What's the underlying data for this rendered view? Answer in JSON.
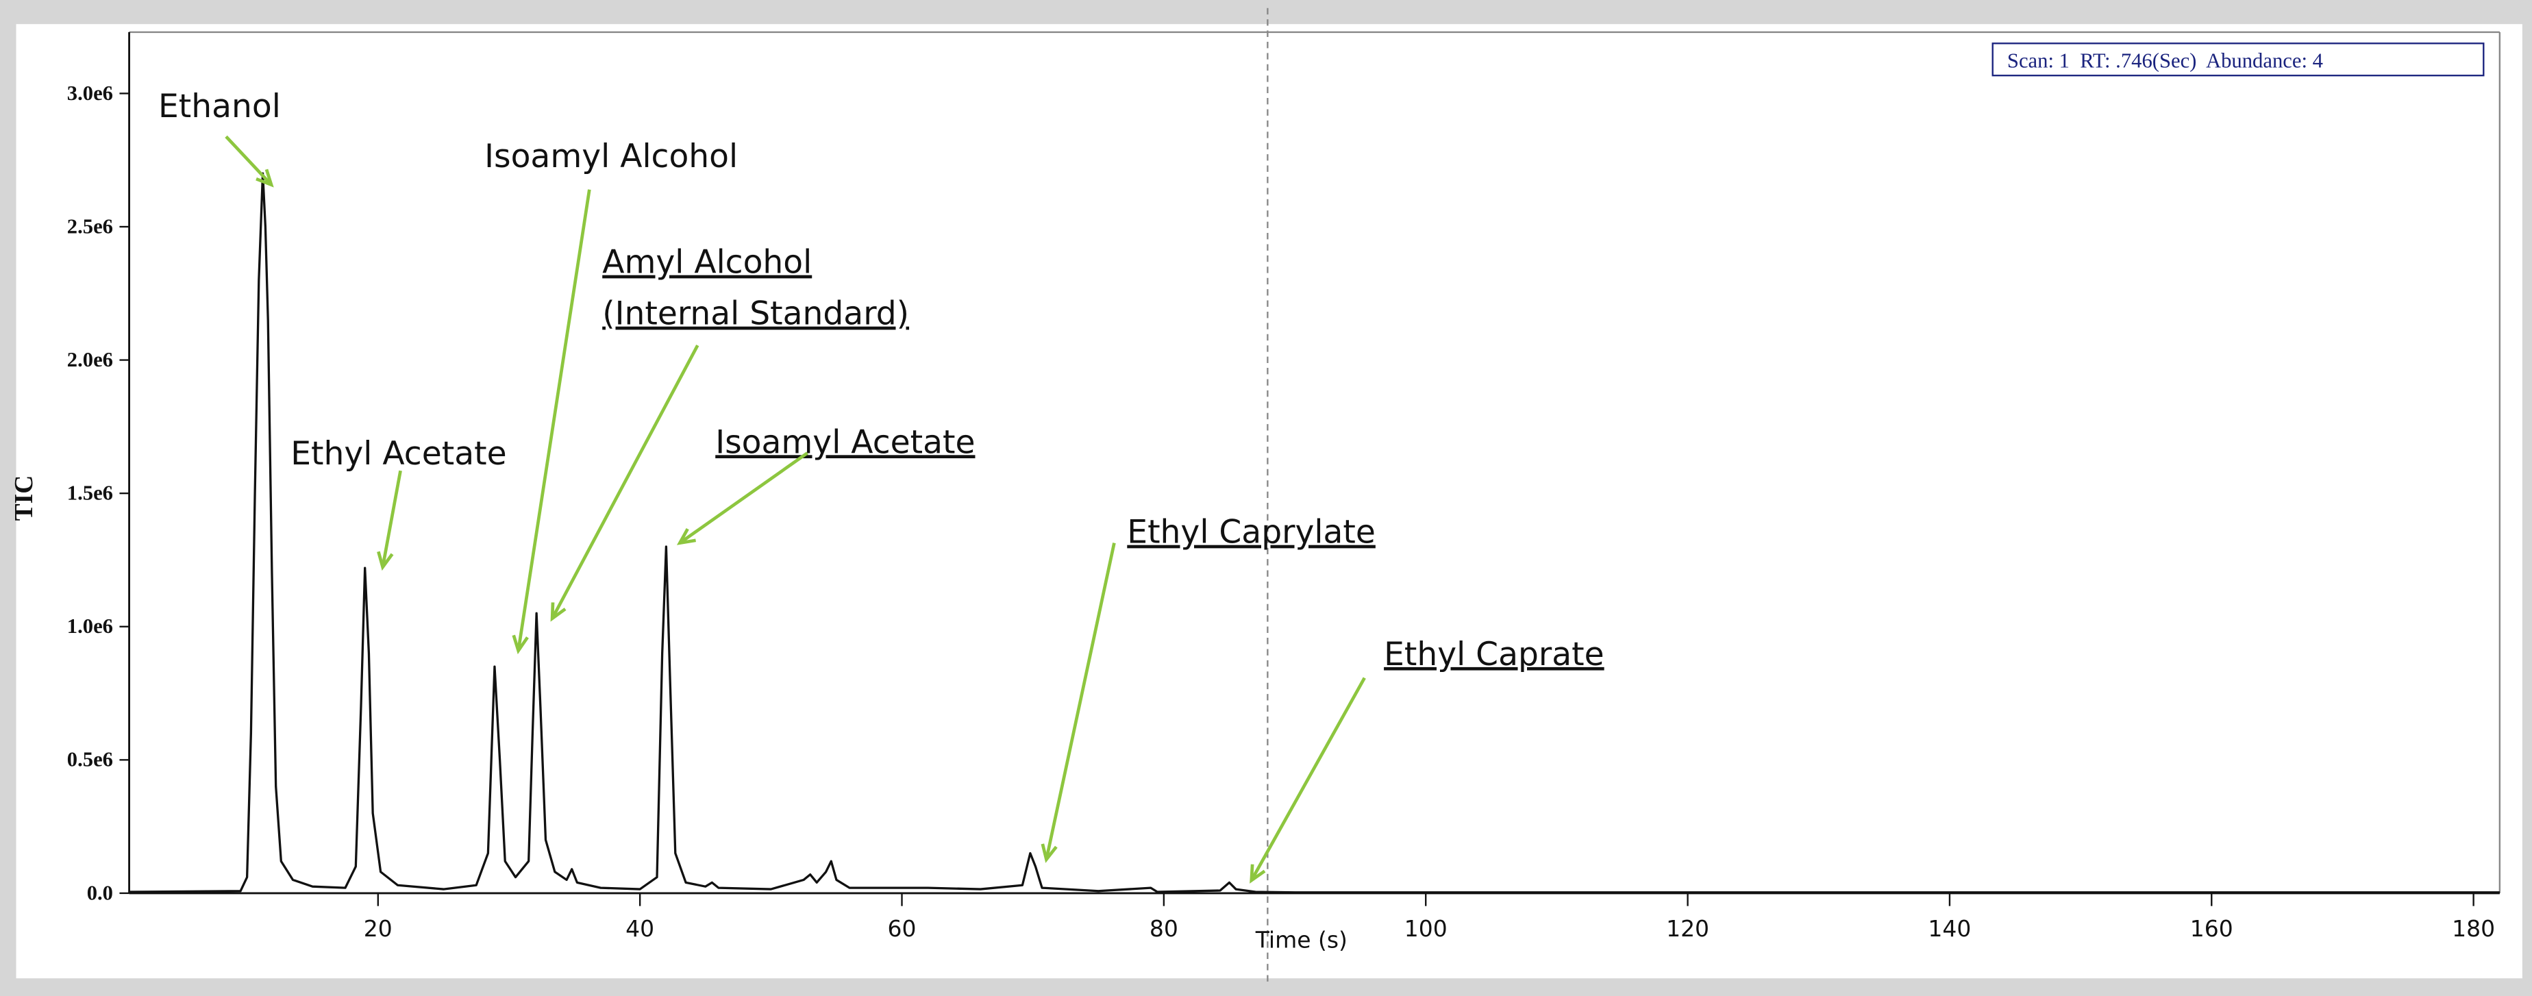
{
  "chart_data": {
    "type": "line",
    "x_label": "Time (s)",
    "y_label": "TIC",
    "status_text": "Scan: 1  RT: .746(Sec)  Abundance: 4",
    "color": "#111111",
    "xlim": [
      1,
      182
    ],
    "ylim": [
      0,
      3230000
    ],
    "xticks": [
      20,
      40,
      60,
      80,
      100,
      120,
      140,
      160,
      180
    ],
    "yticks": [
      {
        "value": 0,
        "label": "0.0"
      },
      {
        "value": 500000,
        "label": "0.5e6"
      },
      {
        "value": 1000000,
        "label": "1.0e6"
      },
      {
        "value": 1500000,
        "label": "1.5e6"
      },
      {
        "value": 2000000,
        "label": "2.0e6"
      },
      {
        "value": 2500000,
        "label": "2.5e6"
      },
      {
        "value": 3000000,
        "label": "3.0e6"
      }
    ],
    "x": [
      1,
      9.5,
      10.0,
      10.3,
      10.6,
      10.9,
      11.2,
      11.4,
      11.6,
      11.9,
      12.2,
      12.6,
      13.5,
      15,
      17.5,
      18.3,
      18.7,
      19.0,
      19.3,
      19.6,
      20.2,
      21.5,
      25,
      27.5,
      28.4,
      28.9,
      29.3,
      29.7,
      30.5,
      31.5,
      31.8,
      32.1,
      32.4,
      32.8,
      33.5,
      34.4,
      34.8,
      35.2,
      37,
      40,
      41.3,
      41.7,
      42.0,
      42.3,
      42.7,
      43.5,
      45,
      45.5,
      46,
      50,
      52.5,
      53,
      53.5,
      54.2,
      54.6,
      55,
      56,
      62,
      66,
      69.2,
      69.8,
      70.2,
      70.7,
      75,
      79,
      79.5,
      84.3,
      85,
      85.5,
      87,
      90,
      182
    ],
    "values": [
      5000,
      8000,
      60000,
      600000,
      1500000,
      2300000,
      2700000,
      2500000,
      2150000,
      1200000,
      400000,
      120000,
      50000,
      25000,
      20000,
      100000,
      700000,
      1220000,
      900000,
      300000,
      80000,
      30000,
      15000,
      30000,
      150000,
      850000,
      500000,
      120000,
      60000,
      120000,
      600000,
      1050000,
      700000,
      200000,
      80000,
      50000,
      90000,
      40000,
      20000,
      15000,
      60000,
      900000,
      1300000,
      800000,
      150000,
      40000,
      25000,
      40000,
      20000,
      15000,
      50000,
      70000,
      40000,
      80000,
      120000,
      50000,
      20000,
      20000,
      15000,
      30000,
      150000,
      100000,
      20000,
      8000,
      20000,
      5000,
      10000,
      40000,
      15000,
      5000,
      3000,
      3000
    ],
    "annotations": [
      {
        "lines": [
          "Ethanol"
        ],
        "underline": false
      },
      {
        "lines": [
          "Isoamyl Alcohol"
        ],
        "underline": false
      },
      {
        "lines": [
          "Amyl Alcohol",
          "(Internal Standard)"
        ],
        "underline": true
      },
      {
        "lines": [
          "Ethyl Acetate"
        ],
        "underline": false
      },
      {
        "lines": [
          "Isoamyl Acetate"
        ],
        "underline": true
      },
      {
        "lines": [
          "Ethyl Caprylate"
        ],
        "underline": true
      },
      {
        "lines": [
          "Ethyl Caprate"
        ],
        "underline": true
      }
    ]
  }
}
